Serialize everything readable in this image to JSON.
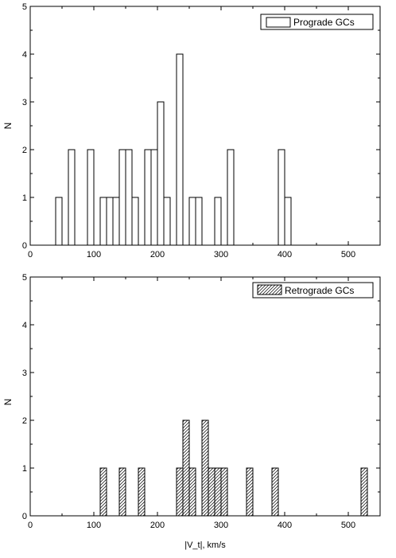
{
  "chart_data": [
    {
      "type": "bar",
      "variant": "histogram",
      "title": "",
      "xlabel": "",
      "ylabel": "N",
      "xlim": [
        0,
        550
      ],
      "ylim": [
        0,
        5
      ],
      "xticks": [
        0,
        100,
        200,
        300,
        400,
        500
      ],
      "yticks": [
        0,
        1,
        2,
        3,
        4,
        5
      ],
      "bin_width": 10,
      "legend": {
        "label": "Prograde GCs",
        "position": "top-right",
        "fill": "open"
      },
      "bins": [
        {
          "x_start": 40,
          "count": 1
        },
        {
          "x_start": 60,
          "count": 2
        },
        {
          "x_start": 90,
          "count": 2
        },
        {
          "x_start": 110,
          "count": 1
        },
        {
          "x_start": 120,
          "count": 1
        },
        {
          "x_start": 130,
          "count": 1
        },
        {
          "x_start": 140,
          "count": 2
        },
        {
          "x_start": 150,
          "count": 2
        },
        {
          "x_start": 160,
          "count": 1
        },
        {
          "x_start": 180,
          "count": 2
        },
        {
          "x_start": 190,
          "count": 2
        },
        {
          "x_start": 200,
          "count": 3
        },
        {
          "x_start": 210,
          "count": 1
        },
        {
          "x_start": 230,
          "count": 4
        },
        {
          "x_start": 250,
          "count": 1
        },
        {
          "x_start": 260,
          "count": 1
        },
        {
          "x_start": 290,
          "count": 1
        },
        {
          "x_start": 310,
          "count": 2
        },
        {
          "x_start": 390,
          "count": 2
        },
        {
          "x_start": 400,
          "count": 1
        }
      ]
    },
    {
      "type": "bar",
      "variant": "histogram",
      "title": "",
      "xlabel": "|V_t|, km/s",
      "ylabel": "N",
      "xlim": [
        0,
        550
      ],
      "ylim": [
        0,
        5
      ],
      "xticks": [
        0,
        100,
        200,
        300,
        400,
        500
      ],
      "yticks": [
        0,
        1,
        2,
        3,
        4,
        5
      ],
      "bin_width": 10,
      "legend": {
        "label": "Retrograde GCs",
        "position": "top-right",
        "fill": "hatched"
      },
      "bins": [
        {
          "x_start": 110,
          "count": 1
        },
        {
          "x_start": 140,
          "count": 1
        },
        {
          "x_start": 170,
          "count": 1
        },
        {
          "x_start": 230,
          "count": 1
        },
        {
          "x_start": 240,
          "count": 2
        },
        {
          "x_start": 250,
          "count": 1
        },
        {
          "x_start": 270,
          "count": 2
        },
        {
          "x_start": 280,
          "count": 1
        },
        {
          "x_start": 290,
          "count": 1
        },
        {
          "x_start": 300,
          "count": 1
        },
        {
          "x_start": 340,
          "count": 1
        },
        {
          "x_start": 380,
          "count": 1
        },
        {
          "x_start": 520,
          "count": 1
        }
      ]
    }
  ]
}
